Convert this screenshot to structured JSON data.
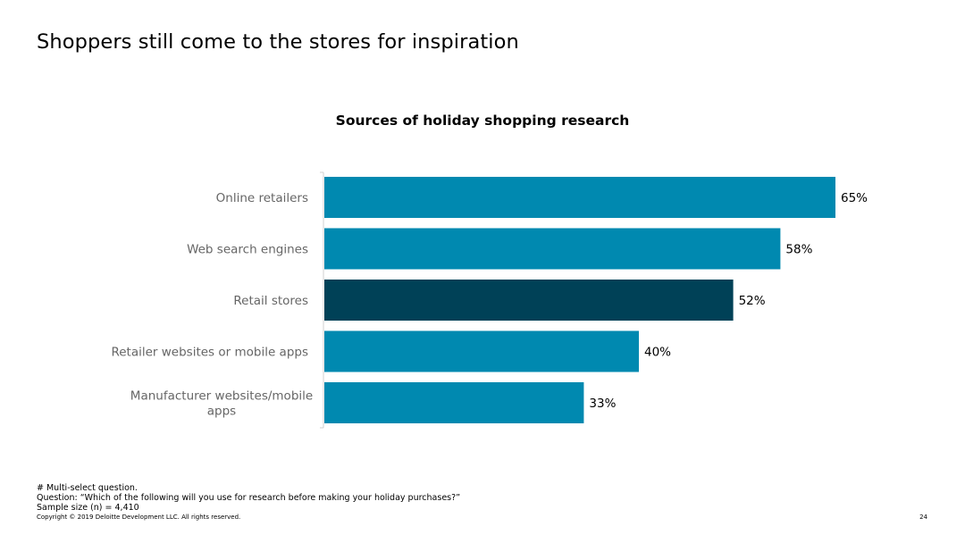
{
  "slide": {
    "title": "Shoppers still come to the stores for inspiration",
    "footnotes": [
      "# Multi-select question.",
      "Question: “Which of the following will you use for research before making your holiday purchases?”",
      "Sample size (n) = 4,410"
    ],
    "copyright": "Copyright © 2019 Deloitte Development LLC. All rights reserved.",
    "page_number": "24"
  },
  "chart_data": {
    "type": "bar",
    "orientation": "horizontal",
    "title": "Sources of holiday shopping research",
    "categories": [
      [
        "Online retailers"
      ],
      [
        "Web search engines"
      ],
      [
        "Retail stores"
      ],
      [
        "Retailer websites or mobile apps"
      ],
      [
        "Manufacturer websites/mobile",
        "apps"
      ]
    ],
    "values": [
      65,
      58,
      52,
      40,
      33
    ],
    "value_labels": [
      "65%",
      "58%",
      "52%",
      "40%",
      "33%"
    ],
    "xlim": [
      0,
      100
    ],
    "grid": false,
    "legend": "none",
    "colors": {
      "default": "#0089B0",
      "highlight": "#004157",
      "axis": "#d0d0d0",
      "category_label": "#666666",
      "value_label": "#000000"
    },
    "highlight_index": 2
  }
}
